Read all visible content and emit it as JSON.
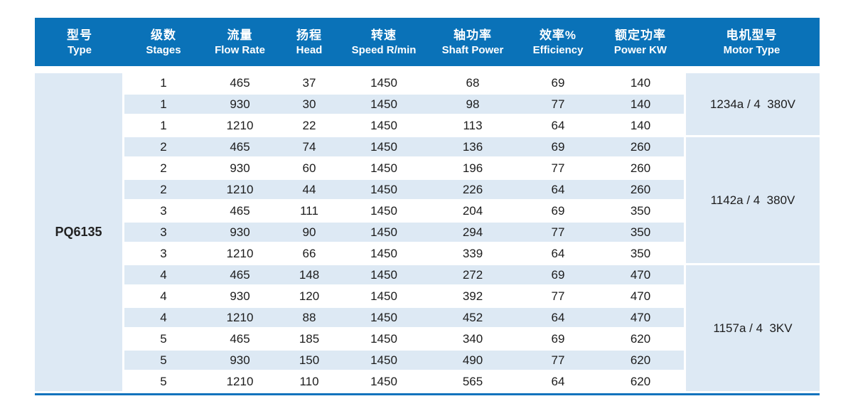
{
  "table": {
    "columns": [
      {
        "zh": "型号",
        "en": "Type"
      },
      {
        "zh": "级数",
        "en": "Stages"
      },
      {
        "zh": "流量",
        "en": "Flow Rate"
      },
      {
        "zh": "扬程",
        "en": "Head"
      },
      {
        "zh": "转速",
        "en": "Speed R/min"
      },
      {
        "zh": "轴功率",
        "en": "Shaft Power"
      },
      {
        "zh": "效率%",
        "en": "Efficiency"
      },
      {
        "zh": "额定功率",
        "en": "Power KW"
      },
      {
        "zh": "电机型号",
        "en": "Motor Type"
      }
    ],
    "type_label": "PQ6135",
    "rows": [
      {
        "stages": "1",
        "flow": "465",
        "head": "37",
        "speed": "1450",
        "shaft": "68",
        "eff": "69",
        "power": "140"
      },
      {
        "stages": "1",
        "flow": "930",
        "head": "30",
        "speed": "1450",
        "shaft": "98",
        "eff": "77",
        "power": "140"
      },
      {
        "stages": "1",
        "flow": "1210",
        "head": "22",
        "speed": "1450",
        "shaft": "113",
        "eff": "64",
        "power": "140"
      },
      {
        "stages": "2",
        "flow": "465",
        "head": "74",
        "speed": "1450",
        "shaft": "136",
        "eff": "69",
        "power": "260"
      },
      {
        "stages": "2",
        "flow": "930",
        "head": "60",
        "speed": "1450",
        "shaft": "196",
        "eff": "77",
        "power": "260"
      },
      {
        "stages": "2",
        "flow": "1210",
        "head": "44",
        "speed": "1450",
        "shaft": "226",
        "eff": "64",
        "power": "260"
      },
      {
        "stages": "3",
        "flow": "465",
        "head": "111",
        "speed": "1450",
        "shaft": "204",
        "eff": "69",
        "power": "350"
      },
      {
        "stages": "3",
        "flow": "930",
        "head": "90",
        "speed": "1450",
        "shaft": "294",
        "eff": "77",
        "power": "350"
      },
      {
        "stages": "3",
        "flow": "1210",
        "head": "66",
        "speed": "1450",
        "shaft": "339",
        "eff": "64",
        "power": "350"
      },
      {
        "stages": "4",
        "flow": "465",
        "head": "148",
        "speed": "1450",
        "shaft": "272",
        "eff": "69",
        "power": "470"
      },
      {
        "stages": "4",
        "flow": "930",
        "head": "120",
        "speed": "1450",
        "shaft": "392",
        "eff": "77",
        "power": "470"
      },
      {
        "stages": "4",
        "flow": "1210",
        "head": "88",
        "speed": "1450",
        "shaft": "452",
        "eff": "64",
        "power": "470"
      },
      {
        "stages": "5",
        "flow": "465",
        "head": "185",
        "speed": "1450",
        "shaft": "340",
        "eff": "69",
        "power": "620"
      },
      {
        "stages": "5",
        "flow": "930",
        "head": "150",
        "speed": "1450",
        "shaft": "490",
        "eff": "77",
        "power": "620"
      },
      {
        "stages": "5",
        "flow": "1210",
        "head": "110",
        "speed": "1450",
        "shaft": "565",
        "eff": "64",
        "power": "620"
      }
    ],
    "motor_groups": [
      {
        "label": "1234a / 4  380V",
        "span": 3
      },
      {
        "label": "1142a / 4  380V",
        "span": 6
      },
      {
        "label": "1157a / 4  3KV",
        "span": 6
      }
    ]
  },
  "colors": {
    "header_blue": "#0a72b8",
    "row_alt_blue": "#dde9f4",
    "bottom_line_blue": "#1273bd",
    "header_text": "#ffffff",
    "body_text": "#1c1c1c"
  }
}
